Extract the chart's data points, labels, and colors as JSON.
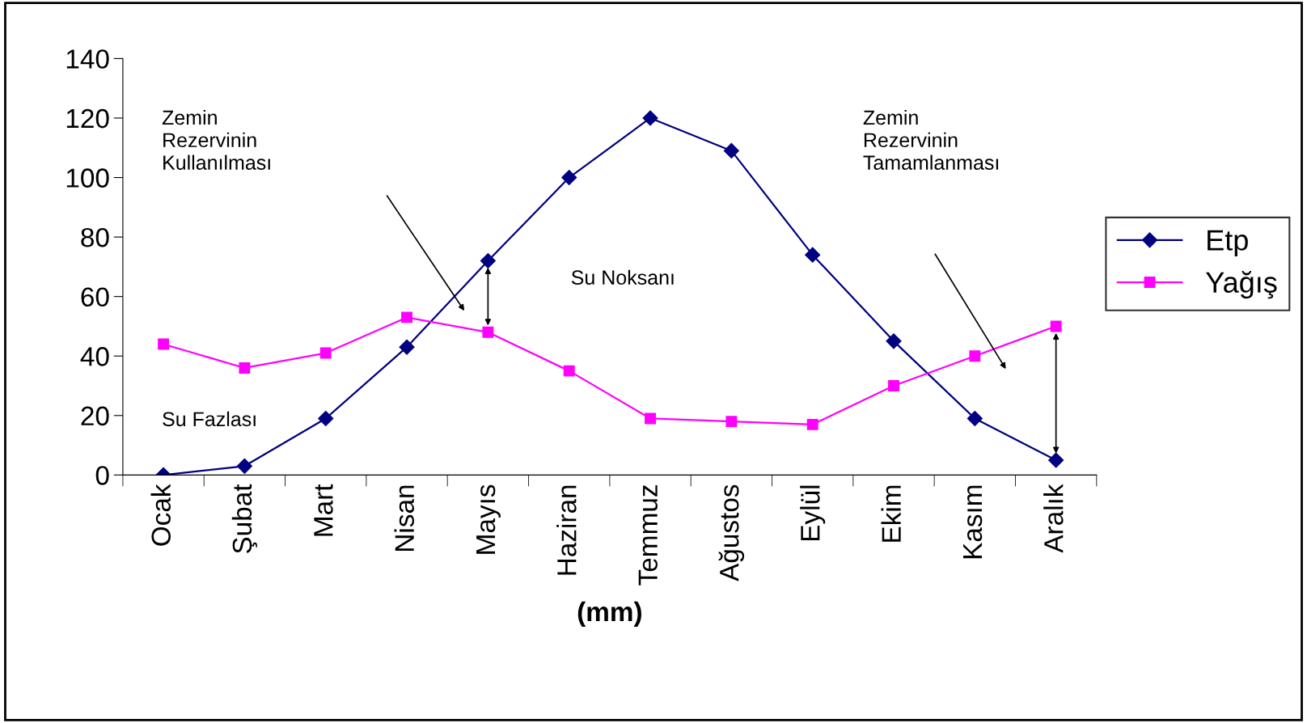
{
  "chart_data": {
    "type": "line",
    "xlabel": "(mm)",
    "categories": [
      "Ocak",
      "Şubat",
      "Mart",
      "Nisan",
      "Mayıs",
      "Haziran",
      "Temmuz",
      "Ağustos",
      "Eylül",
      "Ekim",
      "Kasım",
      "Aralık"
    ],
    "series": [
      {
        "name": "Etp",
        "color": "#000080",
        "marker": "diamond",
        "values": [
          0,
          3,
          19,
          43,
          72,
          100,
          120,
          109,
          74,
          45,
          19,
          5
        ]
      },
      {
        "name": "Yağış",
        "color": "#ff00ff",
        "marker": "square",
        "values": [
          44,
          36,
          41,
          53,
          48,
          35,
          19,
          18,
          17,
          30,
          40,
          50
        ]
      }
    ],
    "ylim": [
      0,
      140
    ],
    "yticks": [
      0,
      20,
      40,
      60,
      80,
      100,
      120,
      140
    ],
    "grid": false,
    "legend": "right",
    "line_style": "solid",
    "annotations": [
      "Zemin\nRezervinin\nKullanılması",
      "Zemin\nRezervinin\nTamamlanması",
      "Su Noksanı",
      "Su Fazlası"
    ]
  }
}
